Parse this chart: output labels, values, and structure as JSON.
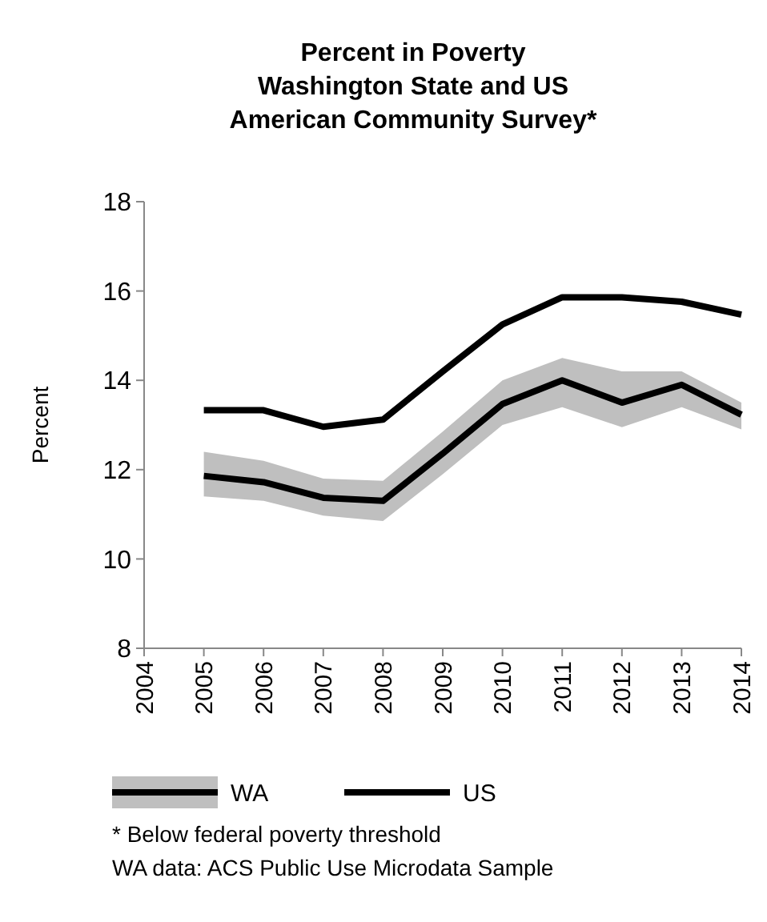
{
  "chart_data": {
    "type": "line",
    "title": "Percent  in Poverty\nWashington State and US\nAmerican Community  Survey*",
    "ylabel": "Percent",
    "x": [
      2005,
      2006,
      2007,
      2008,
      2009,
      2010,
      2011,
      2012,
      2013,
      2014
    ],
    "series": [
      {
        "name": "WA",
        "color": "#000000",
        "values": [
          11.86,
          11.72,
          11.37,
          11.3,
          12.36,
          13.47,
          14.0,
          13.5,
          13.9,
          13.23
        ],
        "lower": [
          11.4,
          11.3,
          10.97,
          10.85,
          11.9,
          13.0,
          13.4,
          12.95,
          13.4,
          12.9
        ],
        "upper": [
          12.4,
          12.2,
          11.8,
          11.75,
          12.85,
          14.0,
          14.5,
          14.2,
          14.2,
          13.5
        ]
      },
      {
        "name": "US",
        "color": "#000000",
        "values": [
          13.33,
          13.33,
          12.96,
          13.12,
          14.2,
          15.25,
          15.86,
          15.86,
          15.76,
          15.47
        ]
      }
    ],
    "xlim": [
      2004,
      2014
    ],
    "xticks": [
      2004,
      2005,
      2006,
      2007,
      2008,
      2009,
      2010,
      2011,
      2012,
      2013,
      2014
    ],
    "ylim": [
      8,
      18
    ],
    "yticks": [
      8,
      10,
      12,
      14,
      16,
      18
    ],
    "grid": false,
    "legend": "bottom",
    "marker": "none",
    "line_style": "solid",
    "annotations": [
      "* Below federal poverty threshold",
      "WA data: ACS Public Use Microdata Sample"
    ]
  }
}
